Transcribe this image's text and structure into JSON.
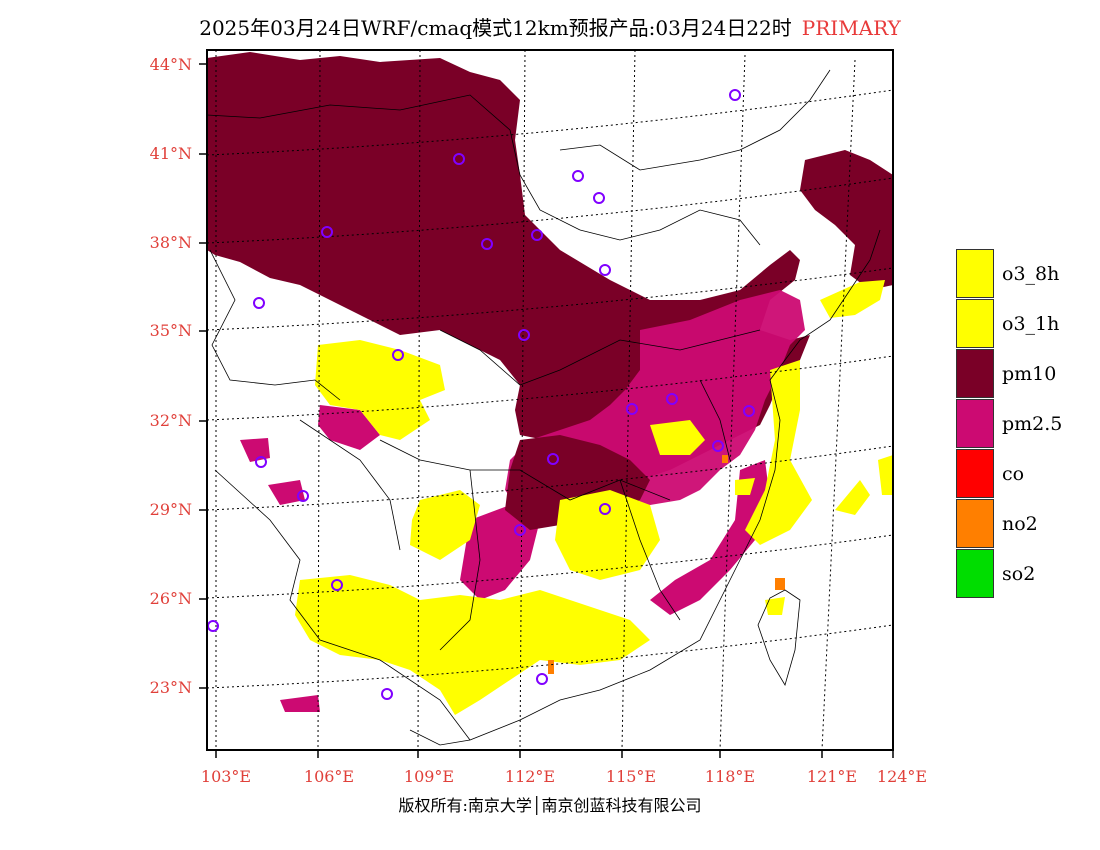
{
  "title": {
    "main": "2025年03月24日WRF/cmaq模式12km预报产品:03月24日22时",
    "tag": "PRIMARY"
  },
  "axes": {
    "lat_labels": [
      "44°N",
      "41°N",
      "38°N",
      "35°N",
      "32°N",
      "29°N",
      "26°N",
      "23°N"
    ],
    "lon_labels": [
      "103°E",
      "106°E",
      "109°E",
      "112°E",
      "115°E",
      "118°E",
      "121°E",
      "124°E"
    ],
    "label_color": "#e0403a"
  },
  "legend": {
    "items": [
      {
        "label": "o3_8h",
        "color": "#ffff00"
      },
      {
        "label": "o3_1h",
        "color": "#ffff00"
      },
      {
        "label": "pm10",
        "color": "#7a0027"
      },
      {
        "label": "pm2.5",
        "color": "#cc0a72"
      },
      {
        "label": "co",
        "color": "#ff0000"
      },
      {
        "label": "no2",
        "color": "#ff7f00"
      },
      {
        "label": "so2",
        "color": "#00dd00"
      }
    ]
  },
  "colors": {
    "pm10": "#7a0027",
    "pm25": "#cc0a72",
    "o3": "#ffff00",
    "no2": "#ff7f00",
    "station_marker": "#8000ff"
  },
  "credit": "版权所有:南京大学│南京创蓝科技有限公司"
}
